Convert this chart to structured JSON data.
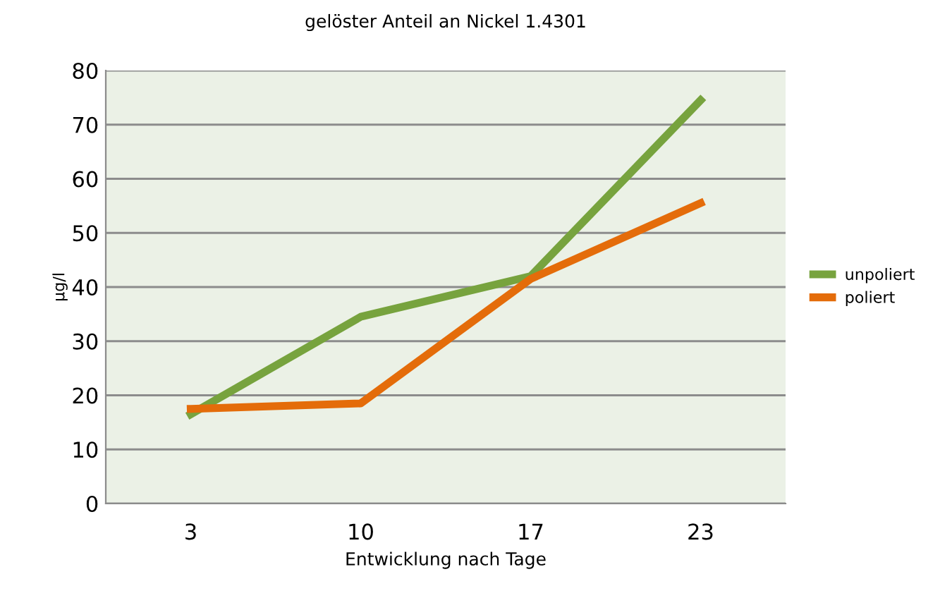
{
  "chart_data": {
    "type": "line",
    "title": "gelöster Anteil an Nickel 1.4301",
    "xlabel": "Entwicklung nach Tage",
    "ylabel": "µg/l",
    "categories": [
      "3",
      "10",
      "17",
      "23"
    ],
    "series": [
      {
        "name": "unpoliert",
        "color": "#77a33e",
        "values": [
          16.5,
          34.5,
          42,
          74.5
        ]
      },
      {
        "name": "poliert",
        "color": "#e46c0a",
        "values": [
          17.5,
          18.5,
          41.5,
          55.5
        ]
      }
    ],
    "ylim": [
      0,
      80
    ],
    "yticks": [
      0,
      10,
      20,
      30,
      40,
      50,
      60,
      70,
      80
    ],
    "grid": "y",
    "legend": "right",
    "marker": "none",
    "line_style": "solid"
  }
}
